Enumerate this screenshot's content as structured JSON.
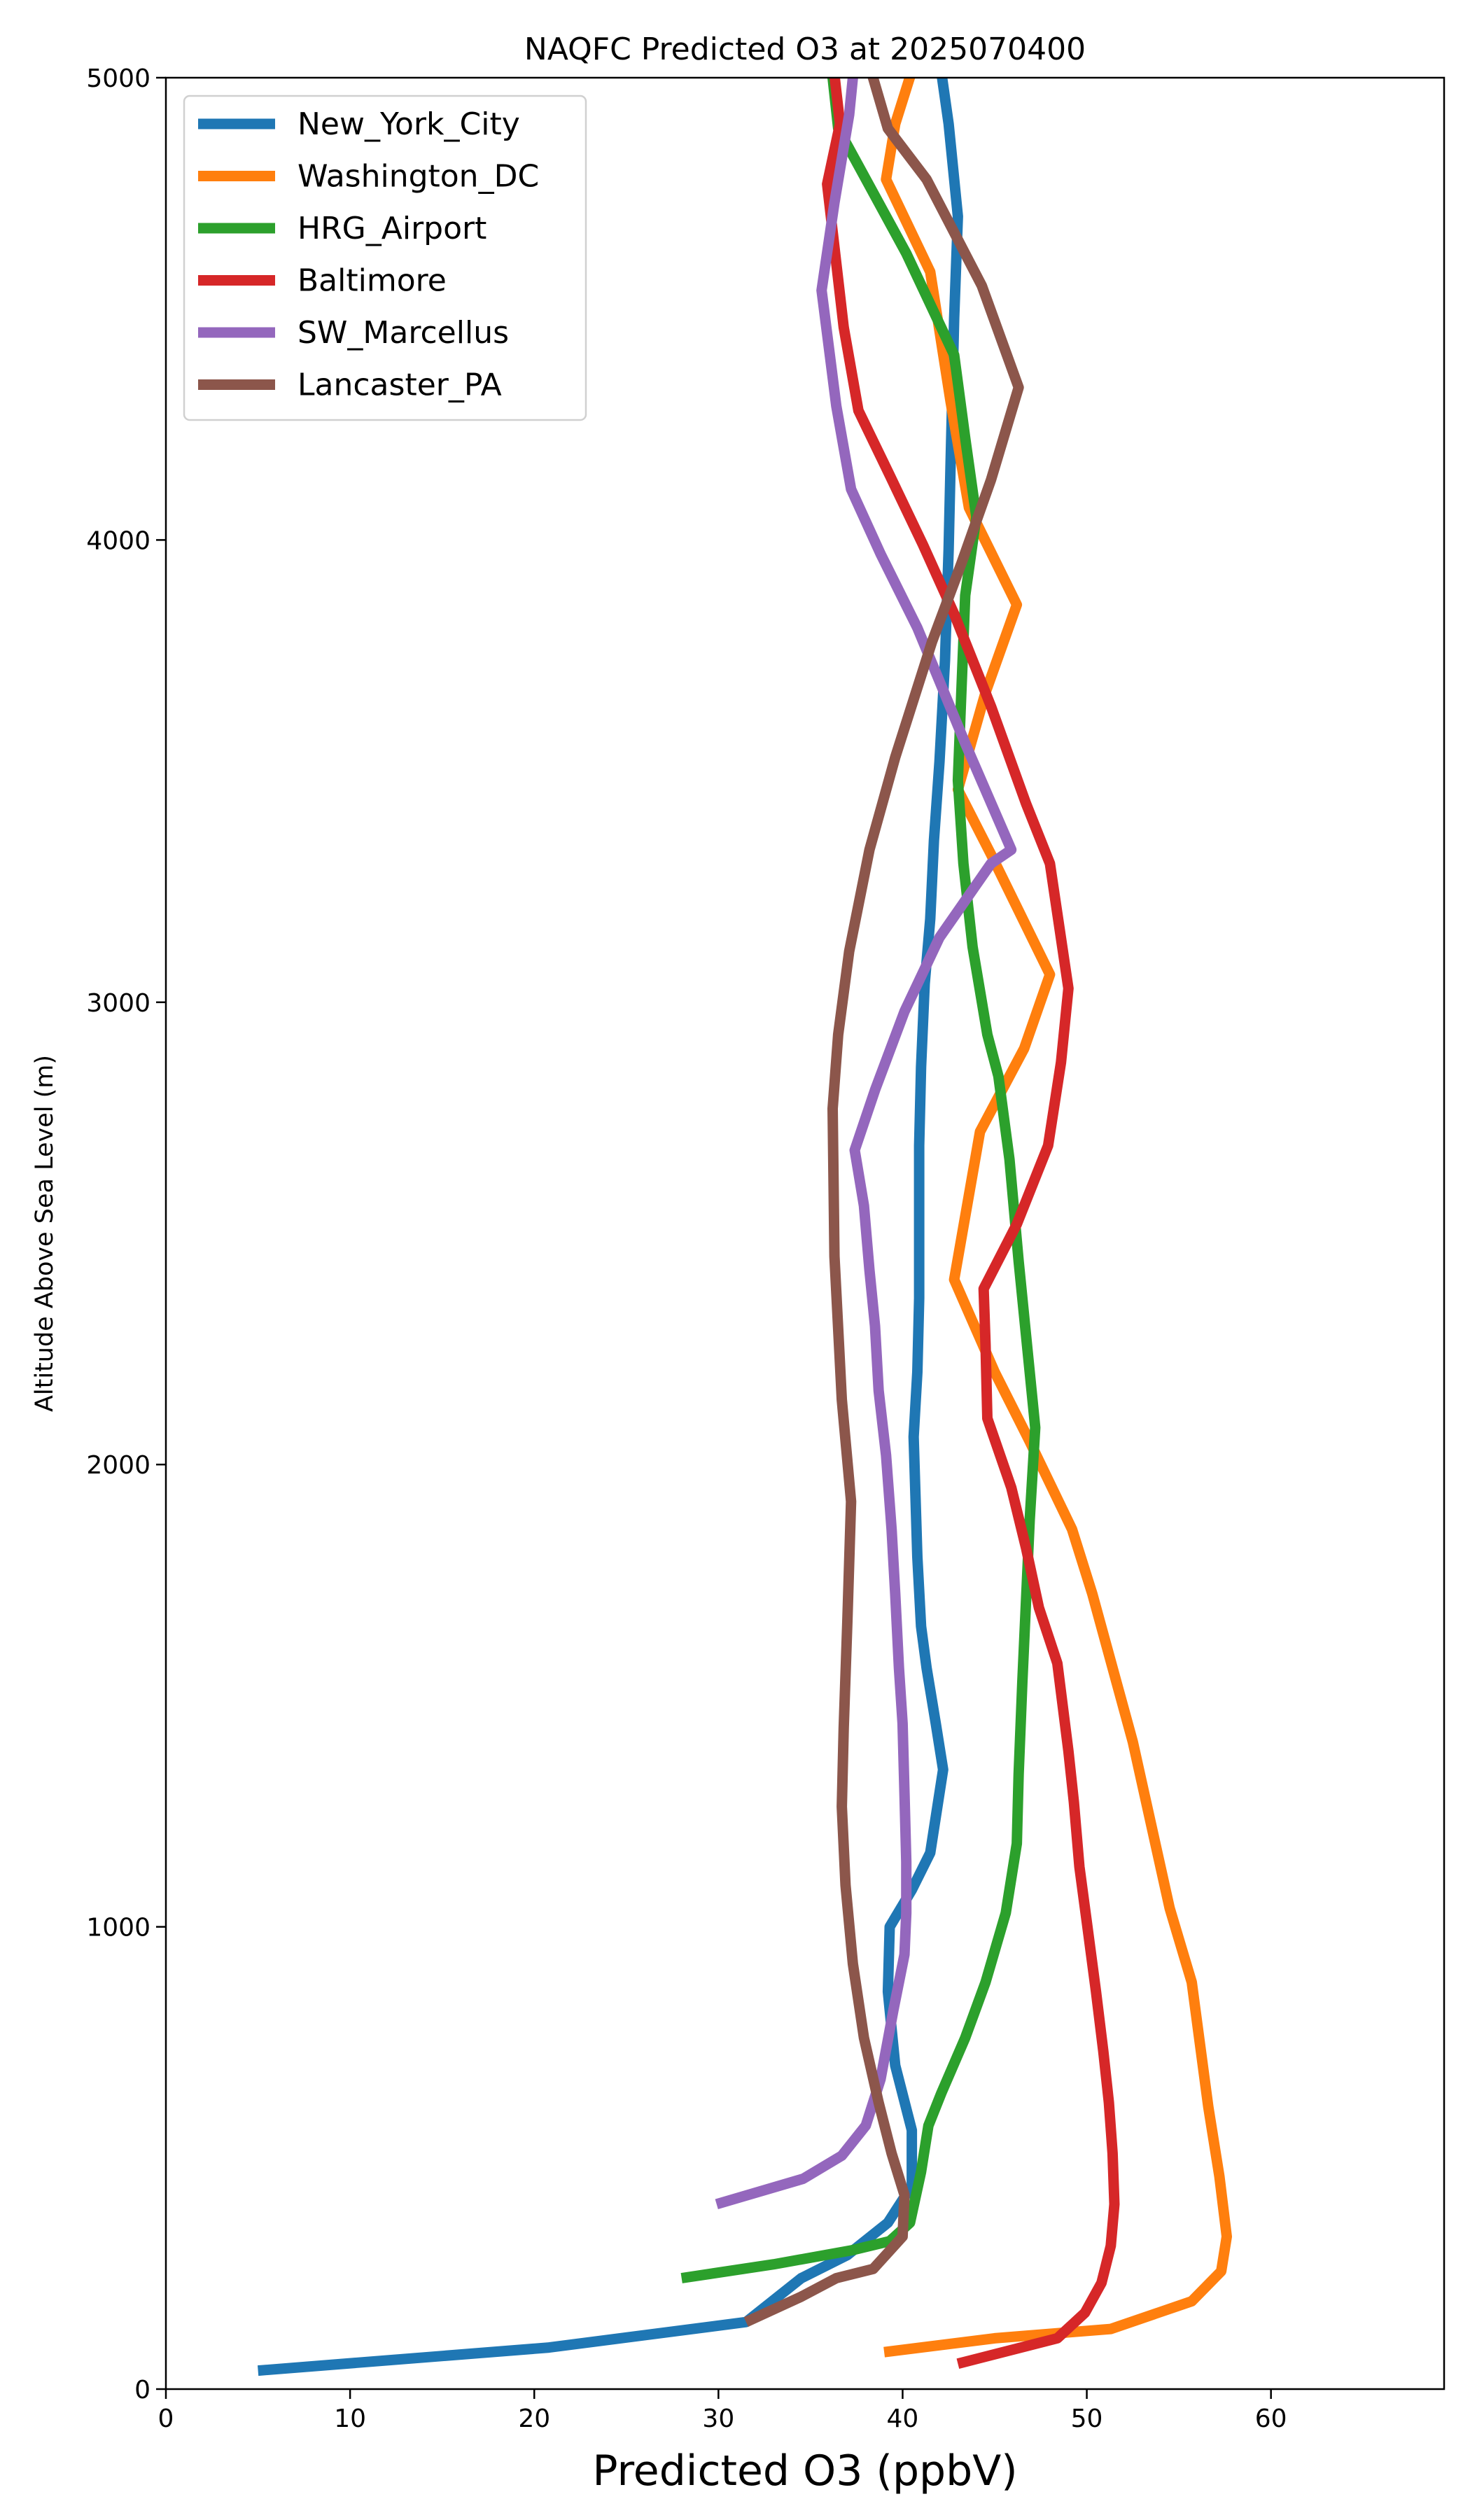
{
  "chart_data": {
    "type": "line",
    "title": "NAQFC Predicted O3 at 2025070400",
    "xlabel": "Predicted O3 (ppbV)",
    "ylabel": "Altitude Above Sea Level (m)",
    "xlim": [
      0,
      69.4
    ],
    "ylim": [
      0,
      5000
    ],
    "xticks": [
      "0",
      "10",
      "20",
      "30",
      "40",
      "50",
      "60"
    ],
    "yticks": [
      "0",
      "1000",
      "2000",
      "3000",
      "4000",
      "5000"
    ],
    "grid": false,
    "legend_position": "upper-left",
    "series": [
      {
        "name": "New_York_City",
        "color": "#1f77b4",
        "points": [
          [
            5.0,
            40
          ],
          [
            20.8,
            90
          ],
          [
            31.5,
            145
          ],
          [
            34.5,
            240
          ],
          [
            37.0,
            290
          ],
          [
            39.2,
            360
          ],
          [
            40.5,
            440
          ],
          [
            40.5,
            560
          ],
          [
            39.6,
            700
          ],
          [
            39.2,
            860
          ],
          [
            39.3,
            1000
          ],
          [
            40.5,
            1080
          ],
          [
            41.5,
            1160
          ],
          [
            42.2,
            1340
          ],
          [
            41.8,
            1440
          ],
          [
            41.3,
            1560
          ],
          [
            41.0,
            1650
          ],
          [
            40.8,
            1800
          ],
          [
            40.6,
            2060
          ],
          [
            40.8,
            2200
          ],
          [
            40.9,
            2360
          ],
          [
            40.9,
            2520
          ],
          [
            40.9,
            2690
          ],
          [
            41.0,
            2860
          ],
          [
            41.2,
            3040
          ],
          [
            41.5,
            3180
          ],
          [
            41.7,
            3350
          ],
          [
            42.0,
            3520
          ],
          [
            42.3,
            3740
          ],
          [
            42.5,
            3980
          ],
          [
            42.6,
            4160
          ],
          [
            42.8,
            4480
          ],
          [
            43.0,
            4700
          ],
          [
            42.5,
            4900
          ],
          [
            42.0,
            5040
          ]
        ]
      },
      {
        "name": "Washington_DC",
        "color": "#ff7f0e",
        "points": [
          [
            39.0,
            80
          ],
          [
            45.0,
            110
          ],
          [
            51.3,
            130
          ],
          [
            55.7,
            190
          ],
          [
            57.3,
            255
          ],
          [
            57.6,
            330
          ],
          [
            57.2,
            460
          ],
          [
            56.6,
            610
          ],
          [
            55.7,
            880
          ],
          [
            54.5,
            1040
          ],
          [
            52.5,
            1400
          ],
          [
            50.3,
            1720
          ],
          [
            49.2,
            1860
          ],
          [
            46.9,
            2050
          ],
          [
            45.0,
            2200
          ],
          [
            42.8,
            2400
          ],
          [
            44.2,
            2720
          ],
          [
            46.6,
            2900
          ],
          [
            48.0,
            3060
          ],
          [
            44.8,
            3320
          ],
          [
            43.0,
            3460
          ],
          [
            44.5,
            3670
          ],
          [
            46.2,
            3860
          ],
          [
            43.6,
            4070
          ],
          [
            42.6,
            4300
          ],
          [
            41.5,
            4580
          ],
          [
            39.1,
            4780
          ],
          [
            39.6,
            4900
          ],
          [
            40.7,
            5040
          ]
        ]
      },
      {
        "name": "HRG_Airport",
        "color": "#2ca02c",
        "points": [
          [
            28.0,
            240
          ],
          [
            33.0,
            270
          ],
          [
            37.2,
            300
          ],
          [
            39.3,
            320
          ],
          [
            40.4,
            360
          ],
          [
            41.0,
            470
          ],
          [
            41.4,
            570
          ],
          [
            42.1,
            640
          ],
          [
            43.4,
            760
          ],
          [
            44.5,
            880
          ],
          [
            45.6,
            1030
          ],
          [
            46.2,
            1180
          ],
          [
            46.3,
            1330
          ],
          [
            46.5,
            1530
          ],
          [
            46.9,
            1880
          ],
          [
            47.2,
            2080
          ],
          [
            46.3,
            2440
          ],
          [
            45.8,
            2660
          ],
          [
            45.2,
            2840
          ],
          [
            44.6,
            2930
          ],
          [
            43.8,
            3120
          ],
          [
            43.3,
            3300
          ],
          [
            43.0,
            3480
          ],
          [
            43.2,
            3680
          ],
          [
            43.4,
            3880
          ],
          [
            44.0,
            4050
          ],
          [
            43.4,
            4220
          ],
          [
            42.8,
            4400
          ],
          [
            40.2,
            4620
          ],
          [
            37.6,
            4810
          ],
          [
            36.5,
            4890
          ],
          [
            36.2,
            5000
          ],
          [
            35.8,
            5040
          ]
        ]
      },
      {
        "name": "Baltimore",
        "color": "#d62728",
        "points": [
          [
            43.0,
            55
          ],
          [
            48.4,
            110
          ],
          [
            49.9,
            165
          ],
          [
            50.8,
            230
          ],
          [
            51.3,
            310
          ],
          [
            51.5,
            400
          ],
          [
            51.4,
            510
          ],
          [
            51.2,
            620
          ],
          [
            50.9,
            730
          ],
          [
            50.5,
            860
          ],
          [
            50.0,
            1010
          ],
          [
            49.6,
            1130
          ],
          [
            49.3,
            1270
          ],
          [
            49.0,
            1380
          ],
          [
            48.4,
            1570
          ],
          [
            47.4,
            1690
          ],
          [
            46.7,
            1820
          ],
          [
            45.9,
            1950
          ],
          [
            44.6,
            2100
          ],
          [
            44.5,
            2260
          ],
          [
            44.4,
            2380
          ],
          [
            46.2,
            2520
          ],
          [
            47.9,
            2690
          ],
          [
            48.6,
            2870
          ],
          [
            49.0,
            3030
          ],
          [
            48.0,
            3300
          ],
          [
            46.7,
            3430
          ],
          [
            44.8,
            3640
          ],
          [
            42.8,
            3840
          ],
          [
            41.1,
            3990
          ],
          [
            39.3,
            4140
          ],
          [
            37.6,
            4280
          ],
          [
            36.8,
            4460
          ],
          [
            35.9,
            4770
          ],
          [
            36.6,
            4900
          ],
          [
            36.2,
            5040
          ]
        ]
      },
      {
        "name": "SW_Marcellus",
        "color": "#9467bd",
        "points": [
          [
            29.9,
            400
          ],
          [
            34.6,
            455
          ],
          [
            36.7,
            505
          ],
          [
            38.0,
            570
          ],
          [
            38.8,
            670
          ],
          [
            39.5,
            820
          ],
          [
            40.1,
            940
          ],
          [
            40.2,
            1030
          ],
          [
            40.2,
            1140
          ],
          [
            40.1,
            1290
          ],
          [
            40.0,
            1440
          ],
          [
            39.8,
            1560
          ],
          [
            39.6,
            1720
          ],
          [
            39.4,
            1860
          ],
          [
            39.1,
            2020
          ],
          [
            38.7,
            2160
          ],
          [
            38.5,
            2300
          ],
          [
            38.2,
            2420
          ],
          [
            37.9,
            2560
          ],
          [
            37.4,
            2680
          ],
          [
            38.5,
            2810
          ],
          [
            40.1,
            2980
          ],
          [
            42.0,
            3140
          ],
          [
            44.8,
            3300
          ],
          [
            45.9,
            3330
          ],
          [
            43.4,
            3560
          ],
          [
            40.8,
            3810
          ],
          [
            38.8,
            3970
          ],
          [
            37.2,
            4110
          ],
          [
            36.4,
            4290
          ],
          [
            35.6,
            4540
          ],
          [
            36.3,
            4730
          ],
          [
            37.1,
            4920
          ],
          [
            37.4,
            5040
          ]
        ]
      },
      {
        "name": "Lancaster_PA",
        "color": "#8c564b",
        "points": [
          [
            31.5,
            145
          ],
          [
            34.5,
            200
          ],
          [
            36.4,
            240
          ],
          [
            38.4,
            260
          ],
          [
            40.0,
            330
          ],
          [
            40.1,
            420
          ],
          [
            39.4,
            510
          ],
          [
            38.7,
            620
          ],
          [
            37.9,
            760
          ],
          [
            37.3,
            920
          ],
          [
            36.9,
            1090
          ],
          [
            36.7,
            1260
          ],
          [
            36.8,
            1430
          ],
          [
            37.0,
            1660
          ],
          [
            37.2,
            1920
          ],
          [
            36.7,
            2140
          ],
          [
            36.3,
            2450
          ],
          [
            36.2,
            2770
          ],
          [
            36.5,
            2930
          ],
          [
            37.1,
            3110
          ],
          [
            38.2,
            3330
          ],
          [
            39.6,
            3530
          ],
          [
            41.6,
            3780
          ],
          [
            43.2,
            3950
          ],
          [
            44.8,
            4130
          ],
          [
            46.3,
            4330
          ],
          [
            44.3,
            4550
          ],
          [
            41.3,
            4780
          ],
          [
            39.2,
            4890
          ],
          [
            38.1,
            5040
          ]
        ]
      }
    ]
  }
}
